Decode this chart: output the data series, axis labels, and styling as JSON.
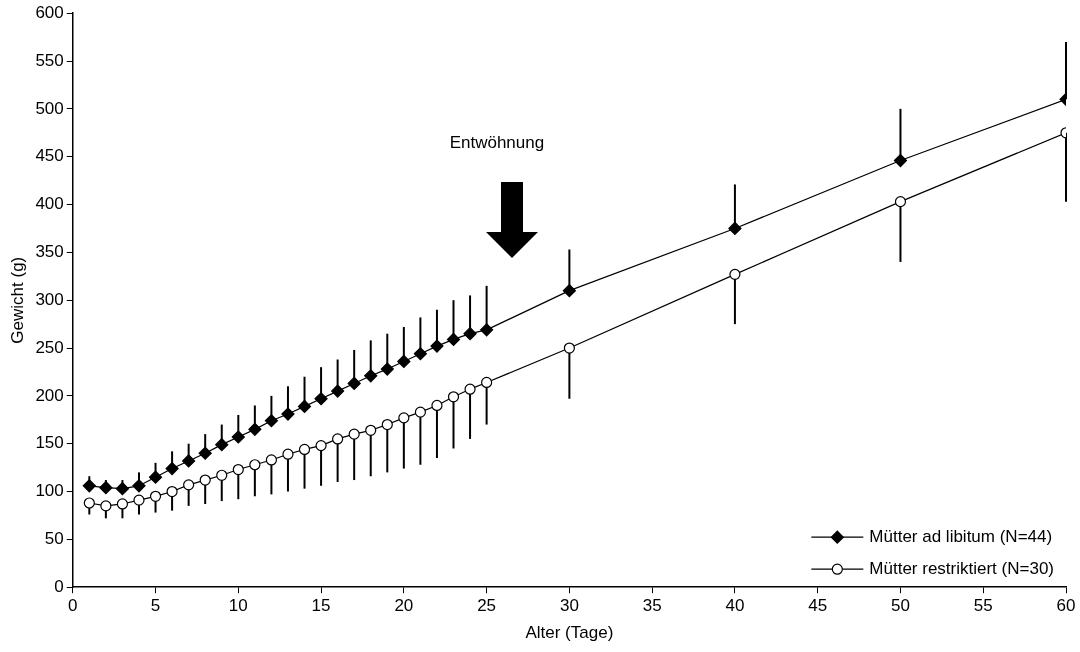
{
  "chart_data": {
    "type": "line",
    "xlabel": "Alter (Tage)",
    "ylabel": "Gewicht (g)",
    "x": [
      1,
      2,
      3,
      4,
      5,
      6,
      7,
      8,
      9,
      10,
      11,
      12,
      13,
      14,
      15,
      16,
      17,
      18,
      19,
      20,
      21,
      22,
      23,
      24,
      25,
      30,
      40,
      50,
      60
    ],
    "series": [
      {
        "name": "Mütter ad libitum (N=44)",
        "color": "#000000",
        "marker": "diamond",
        "values": [
          106,
          104,
          103,
          106,
          115,
          124,
          132,
          140,
          149,
          157,
          165,
          174,
          181,
          189,
          197,
          205,
          213,
          221,
          228,
          236,
          244,
          252,
          259,
          265,
          269,
          310,
          375,
          446,
          510
        ],
        "errors": [
          [
            106,
            116
          ],
          [
            104,
            112
          ],
          [
            103,
            112
          ],
          [
            106,
            120
          ],
          [
            115,
            130
          ],
          [
            124,
            142
          ],
          [
            132,
            150
          ],
          [
            140,
            160
          ],
          [
            149,
            170
          ],
          [
            157,
            180
          ],
          [
            165,
            190
          ],
          [
            174,
            200
          ],
          [
            181,
            210
          ],
          [
            189,
            220
          ],
          [
            197,
            230
          ],
          [
            205,
            238
          ],
          [
            213,
            248
          ],
          [
            221,
            258
          ],
          [
            228,
            265
          ],
          [
            236,
            272
          ],
          [
            244,
            282
          ],
          [
            252,
            290
          ],
          [
            259,
            300
          ],
          [
            265,
            305
          ],
          [
            269,
            315
          ],
          [
            310,
            353
          ],
          [
            375,
            421
          ],
          [
            446,
            500
          ],
          [
            510,
            570
          ]
        ]
      },
      {
        "name": "Mütter restriktiert (N=30)",
        "color": "#000000",
        "marker": "circle",
        "values": [
          88,
          85,
          87,
          91,
          95,
          100,
          107,
          112,
          117,
          123,
          128,
          133,
          139,
          144,
          148,
          155,
          160,
          164,
          170,
          177,
          183,
          190,
          199,
          207,
          214,
          250,
          327,
          403,
          475
        ],
        "errors": [
          [
            76,
            88
          ],
          [
            72,
            85
          ],
          [
            72,
            87
          ],
          [
            76,
            91
          ],
          [
            78,
            95
          ],
          [
            80,
            100
          ],
          [
            85,
            107
          ],
          [
            87,
            112
          ],
          [
            90,
            117
          ],
          [
            92,
            123
          ],
          [
            95,
            128
          ],
          [
            97,
            133
          ],
          [
            100,
            139
          ],
          [
            103,
            144
          ],
          [
            106,
            148
          ],
          [
            110,
            155
          ],
          [
            112,
            160
          ],
          [
            116,
            164
          ],
          [
            120,
            170
          ],
          [
            124,
            177
          ],
          [
            128,
            183
          ],
          [
            135,
            190
          ],
          [
            145,
            199
          ],
          [
            155,
            207
          ],
          [
            170,
            214
          ],
          [
            197,
            250
          ],
          [
            275,
            327
          ],
          [
            340,
            403
          ],
          [
            403,
            475
          ]
        ]
      }
    ],
    "xlim": [
      0,
      60
    ],
    "xticks": [
      0,
      5,
      10,
      15,
      20,
      25,
      30,
      35,
      40,
      45,
      50,
      55,
      60
    ],
    "ylim": [
      0,
      600
    ],
    "yticks": [
      0,
      50,
      100,
      150,
      200,
      250,
      300,
      350,
      400,
      450,
      500,
      550,
      600
    ],
    "grid": false,
    "legend": "bottom right",
    "line_style": "solid",
    "annotations": [
      "Entwöhnung"
    ]
  }
}
